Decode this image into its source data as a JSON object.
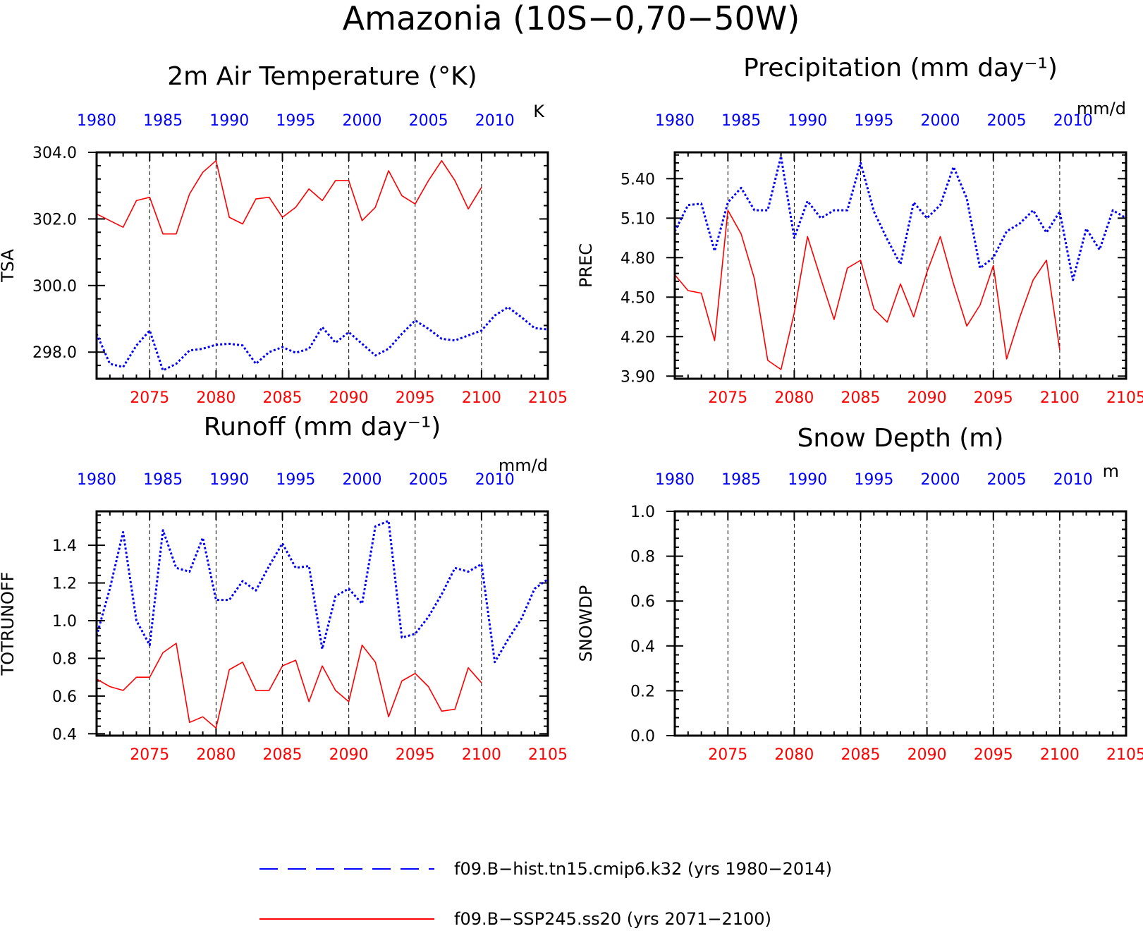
{
  "figure_title": "Amazonia (10S−0,70−50W)",
  "colors": {
    "hist": "#0000ff",
    "ssp": "#ff0000",
    "axis": "#000000",
    "grid": "#000000"
  },
  "legend": {
    "hist_label": "f09.B−hist.tn15.cmip6.k32 (yrs 1980−2014)",
    "ssp_label": "f09.B−SSP245.ss20 (yrs 2071−2100)"
  },
  "chart_data": [
    {
      "type": "line",
      "title": "2m Air Temperature (°K)",
      "ylabel": "TSA",
      "units": "K",
      "ylim": [
        297.2,
        304.0
      ],
      "yticks": [
        298.0,
        300.0,
        302.0,
        304.0
      ],
      "ytick_labels": [
        "298.0",
        "300.0",
        "302.0",
        "304.0"
      ],
      "xlim_bottom": [
        2071,
        2105
      ],
      "xlim_top": [
        1980,
        2014
      ],
      "xticks_bottom": [
        2075,
        2080,
        2085,
        2090,
        2095,
        2100,
        2105
      ],
      "xticks_top": [
        1980,
        1985,
        1990,
        1995,
        2000,
        2005,
        2010
      ],
      "grid": "dashed vertical at bottom major ticks",
      "series": [
        {
          "name": "f09.B−hist.tn15.cmip6.k32 (yrs 1980−2014)",
          "axis": "top",
          "style": "dotted",
          "x": [
            1980,
            1981,
            1982,
            1983,
            1984,
            1985,
            1986,
            1987,
            1988,
            1989,
            1990,
            1991,
            1992,
            1993,
            1994,
            1995,
            1996,
            1997,
            1998,
            1999,
            2000,
            2001,
            2002,
            2003,
            2004,
            2005,
            2006,
            2007,
            2008,
            2009,
            2010,
            2011,
            2012,
            2013,
            2014
          ],
          "values": [
            298.55,
            297.65,
            297.55,
            298.2,
            298.65,
            297.45,
            297.65,
            298.05,
            298.1,
            298.22,
            298.25,
            298.2,
            297.65,
            298.0,
            298.15,
            297.98,
            298.1,
            298.75,
            298.28,
            298.6,
            298.25,
            297.9,
            298.1,
            298.55,
            298.95,
            298.7,
            298.4,
            298.35,
            298.5,
            298.65,
            299.1,
            299.35,
            299.05,
            298.72,
            298.68
          ]
        },
        {
          "name": "f09.B−SSP245.ss20 (yrs 2071−2100)",
          "axis": "bottom",
          "style": "solid",
          "x": [
            2071,
            2072,
            2073,
            2074,
            2075,
            2076,
            2077,
            2078,
            2079,
            2080,
            2081,
            2082,
            2083,
            2084,
            2085,
            2086,
            2087,
            2088,
            2089,
            2090,
            2091,
            2092,
            2093,
            2094,
            2095,
            2096,
            2097,
            2098,
            2099,
            2100
          ],
          "values": [
            302.15,
            301.95,
            301.75,
            302.55,
            302.65,
            301.55,
            301.55,
            302.75,
            303.4,
            303.75,
            302.05,
            301.85,
            302.6,
            302.65,
            302.05,
            302.35,
            302.9,
            302.55,
            303.15,
            303.15,
            301.95,
            302.35,
            303.45,
            302.7,
            302.45,
            303.15,
            303.75,
            303.15,
            302.3,
            302.95
          ]
        }
      ]
    },
    {
      "type": "line",
      "title": "Precipitation (mm day⁻¹)",
      "ylabel": "PREC",
      "units": "mm/d",
      "ylim": [
        3.88,
        5.6
      ],
      "yticks": [
        3.9,
        4.2,
        4.5,
        4.8,
        5.1,
        5.4
      ],
      "ytick_labels": [
        "3.90",
        "4.20",
        "4.50",
        "4.80",
        "5.10",
        "5.40"
      ],
      "xlim_bottom": [
        2071,
        2105
      ],
      "xlim_top": [
        1980,
        2014
      ],
      "xticks_bottom": [
        2075,
        2080,
        2085,
        2090,
        2095,
        2100,
        2105
      ],
      "xticks_top": [
        1980,
        1985,
        1990,
        1995,
        2000,
        2005,
        2010
      ],
      "grid": "dashed vertical at bottom major ticks",
      "series": [
        {
          "name": "f09.B−hist.tn15.cmip6.k32 (yrs 1980−2014)",
          "axis": "top",
          "style": "dotted",
          "x": [
            1980,
            1981,
            1982,
            1983,
            1984,
            1985,
            1986,
            1987,
            1988,
            1989,
            1990,
            1991,
            1992,
            1993,
            1994,
            1995,
            1996,
            1997,
            1998,
            1999,
            2000,
            2001,
            2002,
            2003,
            2004,
            2005,
            2006,
            2007,
            2008,
            2009,
            2010,
            2011,
            2012,
            2013,
            2014
          ],
          "values": [
            5.0,
            5.2,
            5.21,
            4.85,
            5.22,
            5.33,
            5.16,
            5.16,
            5.57,
            4.95,
            5.23,
            5.1,
            5.16,
            5.16,
            5.52,
            5.15,
            4.94,
            4.75,
            5.22,
            5.1,
            5.2,
            5.49,
            5.25,
            4.72,
            4.8,
            5.0,
            5.06,
            5.16,
            4.99,
            5.15,
            4.63,
            5.02,
            4.86,
            5.16,
            5.1
          ]
        },
        {
          "name": "f09.B−SSP245.ss20 (yrs 2071−2100)",
          "axis": "bottom",
          "style": "solid",
          "x": [
            2071,
            2072,
            2073,
            2074,
            2075,
            2076,
            2077,
            2078,
            2079,
            2080,
            2081,
            2082,
            2083,
            2084,
            2085,
            2086,
            2087,
            2088,
            2089,
            2090,
            2091,
            2092,
            2093,
            2094,
            2095,
            2096,
            2097,
            2098,
            2099,
            2100
          ],
          "values": [
            4.67,
            4.55,
            4.53,
            4.17,
            5.16,
            4.98,
            4.64,
            4.02,
            3.95,
            4.38,
            4.96,
            4.64,
            4.33,
            4.72,
            4.78,
            4.41,
            4.31,
            4.6,
            4.35,
            4.69,
            4.96,
            4.6,
            4.28,
            4.44,
            4.74,
            4.03,
            4.35,
            4.63,
            4.78,
            4.1
          ]
        }
      ]
    },
    {
      "type": "line",
      "title": "Runoff (mm day⁻¹)",
      "ylabel": "TOTRUNOFF",
      "units": "mm/d",
      "ylim": [
        0.39,
        1.58
      ],
      "yticks": [
        0.4,
        0.6,
        0.8,
        1.0,
        1.2,
        1.4
      ],
      "ytick_labels": [
        "0.4",
        "0.6",
        "0.8",
        "1.0",
        "1.2",
        "1.4"
      ],
      "xlim_bottom": [
        2071,
        2105
      ],
      "xlim_top": [
        1980,
        2014
      ],
      "xticks_bottom": [
        2075,
        2080,
        2085,
        2090,
        2095,
        2100,
        2105
      ],
      "xticks_top": [
        1980,
        1985,
        1990,
        1995,
        2000,
        2005,
        2010
      ],
      "grid": "dashed vertical at bottom major ticks",
      "series": [
        {
          "name": "f09.B−hist.tn15.cmip6.k32 (yrs 1980−2014)",
          "axis": "top",
          "style": "dotted",
          "x": [
            1980,
            1981,
            1982,
            1983,
            1984,
            1985,
            1986,
            1987,
            1988,
            1989,
            1990,
            1991,
            1992,
            1993,
            1994,
            1995,
            1996,
            1997,
            1998,
            1999,
            2000,
            2001,
            2002,
            2003,
            2004,
            2005,
            2006,
            2007,
            2008,
            2009,
            2010,
            2011,
            2012,
            2013,
            2014
          ],
          "values": [
            0.92,
            1.17,
            1.47,
            1.0,
            0.87,
            1.48,
            1.28,
            1.26,
            1.44,
            1.11,
            1.11,
            1.21,
            1.16,
            1.29,
            1.41,
            1.28,
            1.29,
            0.85,
            1.13,
            1.17,
            1.09,
            1.5,
            1.53,
            0.91,
            0.93,
            1.02,
            1.14,
            1.28,
            1.26,
            1.3,
            0.78,
            0.9,
            1.01,
            1.17,
            1.22
          ]
        },
        {
          "name": "f09.B−SSP245.ss20 (yrs 2071−2100)",
          "axis": "bottom",
          "style": "solid",
          "x": [
            2071,
            2072,
            2073,
            2074,
            2075,
            2076,
            2077,
            2078,
            2079,
            2080,
            2081,
            2082,
            2083,
            2084,
            2085,
            2086,
            2087,
            2088,
            2089,
            2090,
            2091,
            2092,
            2093,
            2094,
            2095,
            2096,
            2097,
            2098,
            2099,
            2100
          ],
          "values": [
            0.69,
            0.65,
            0.63,
            0.7,
            0.7,
            0.83,
            0.88,
            0.46,
            0.49,
            0.43,
            0.74,
            0.78,
            0.63,
            0.63,
            0.76,
            0.79,
            0.57,
            0.76,
            0.63,
            0.57,
            0.87,
            0.78,
            0.49,
            0.68,
            0.72,
            0.65,
            0.52,
            0.53,
            0.75,
            0.67
          ]
        }
      ]
    },
    {
      "type": "line",
      "title": "Snow Depth (m)",
      "ylabel": "SNOWDP",
      "units": "m",
      "ylim": [
        0.0,
        1.0
      ],
      "yticks": [
        0.0,
        0.2,
        0.4,
        0.6,
        0.8,
        1.0
      ],
      "ytick_labels": [
        "0.0",
        "0.2",
        "0.4",
        "0.6",
        "0.8",
        "1.0"
      ],
      "xlim_bottom": [
        2071,
        2105
      ],
      "xlim_top": [
        1980,
        2014
      ],
      "xticks_bottom": [
        2075,
        2080,
        2085,
        2090,
        2095,
        2100,
        2105
      ],
      "xticks_top": [
        1980,
        1985,
        1990,
        1995,
        2000,
        2005,
        2010
      ],
      "grid": "dashed vertical at bottom major ticks",
      "series": []
    }
  ]
}
